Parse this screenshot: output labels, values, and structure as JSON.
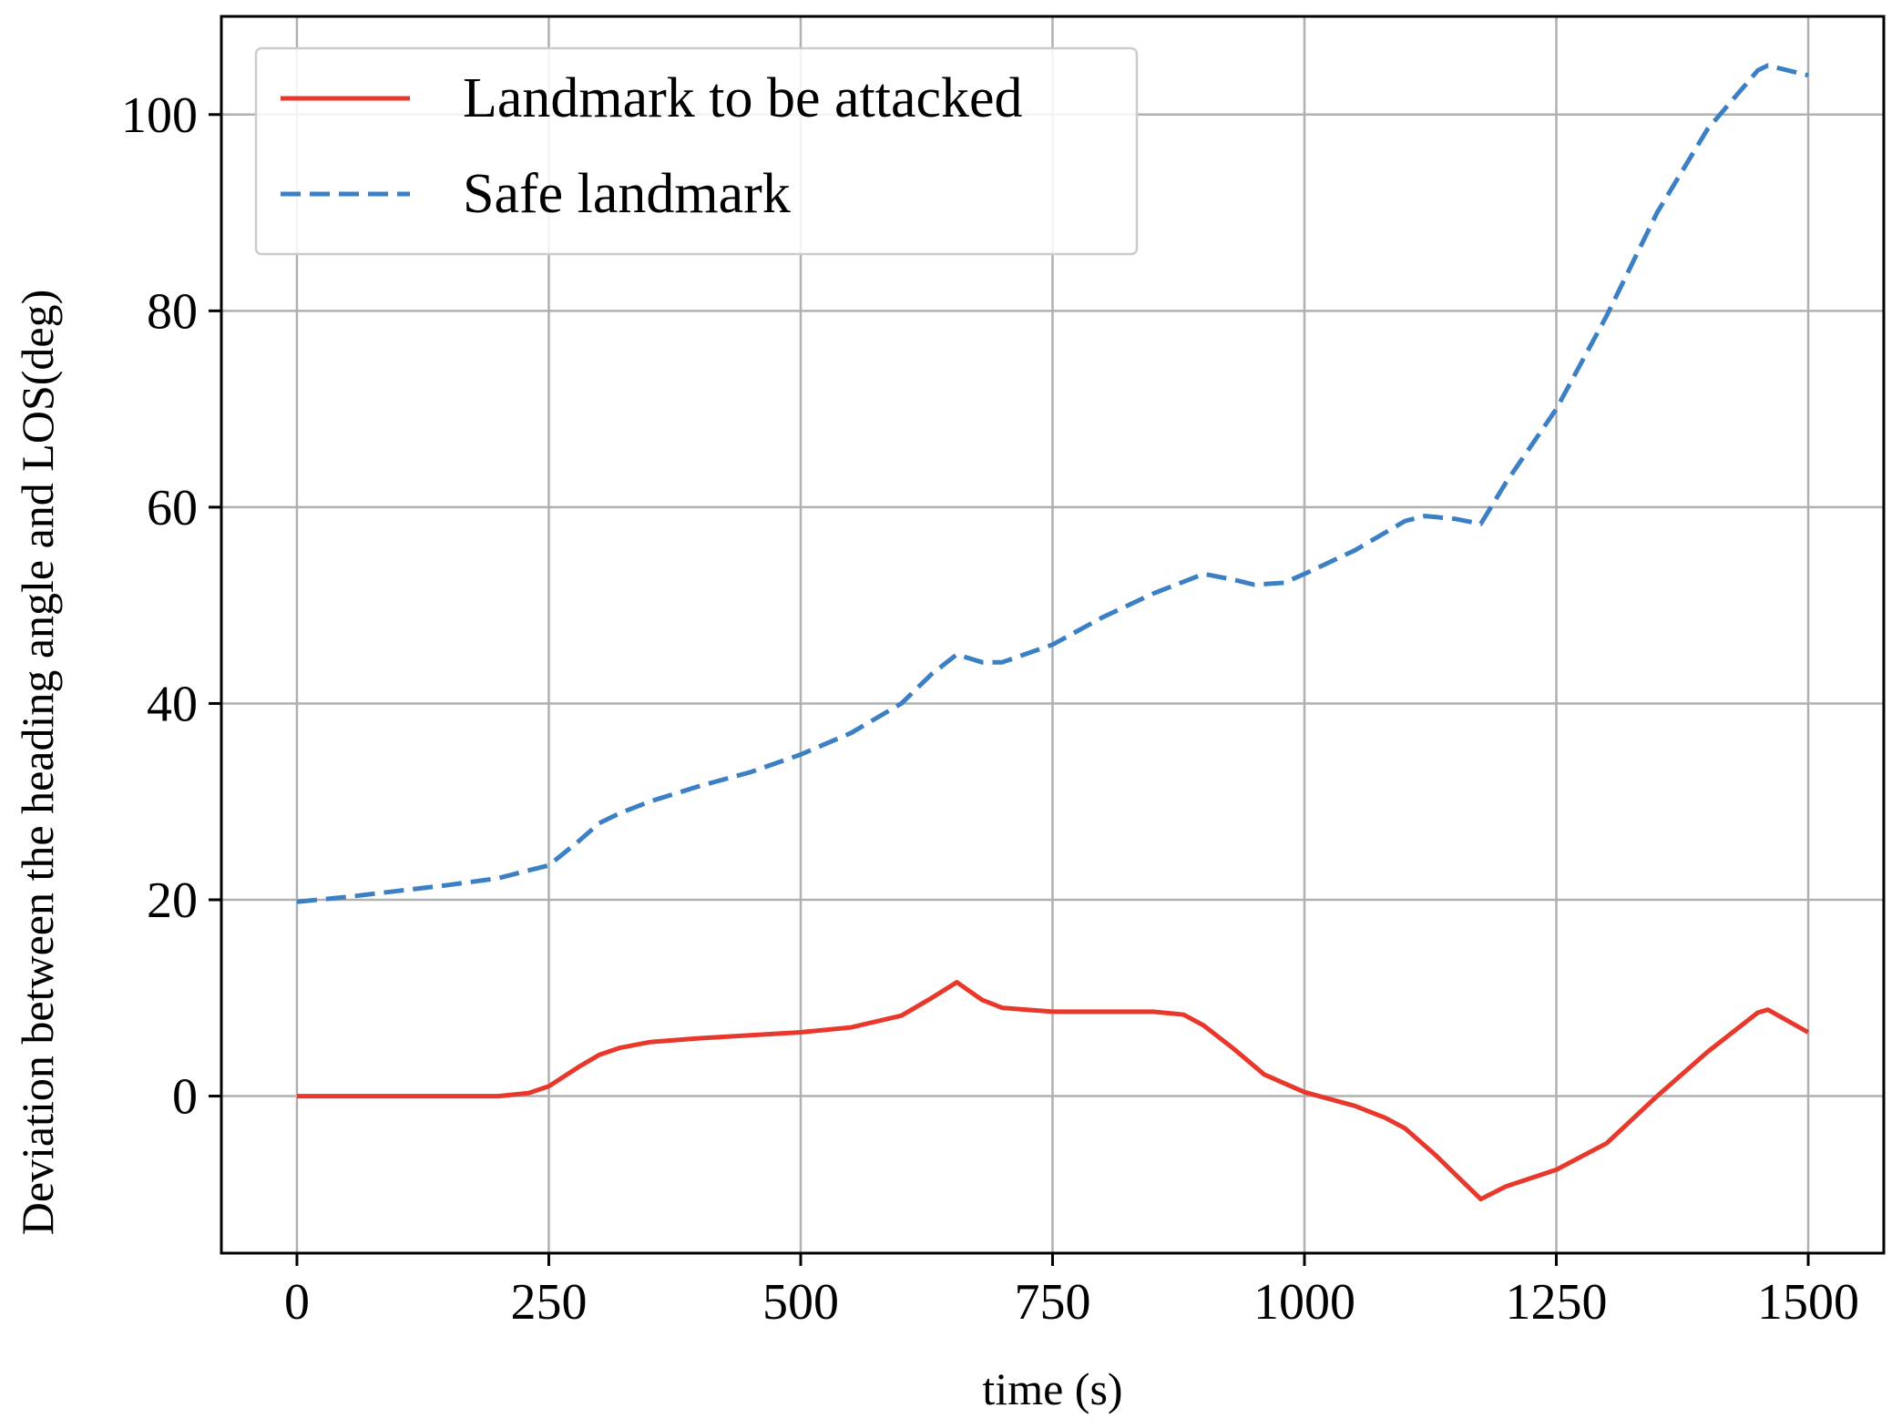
{
  "chart_data": {
    "type": "line",
    "title": "",
    "xlabel": "time (s)",
    "ylabel": "Deviation between the heading angle and LOS(deg)",
    "xlim": [
      -75,
      1575
    ],
    "ylim": [
      -16,
      110
    ],
    "xticks": [
      0,
      250,
      500,
      750,
      1000,
      1250,
      1500
    ],
    "yticks": [
      0,
      20,
      40,
      60,
      80,
      100
    ],
    "xtick_labels": [
      "0",
      "250",
      "500",
      "750",
      "1000",
      "1250",
      "1500"
    ],
    "ytick_labels": [
      "0",
      "20",
      "40",
      "60",
      "80",
      "100"
    ],
    "grid": true,
    "legend_position": "upper-left",
    "series": [
      {
        "name": "Landmark to be attacked",
        "color": "#e8382b",
        "style": "solid",
        "x": [
          0,
          50,
          100,
          150,
          200,
          230,
          250,
          280,
          300,
          320,
          350,
          400,
          450,
          500,
          550,
          600,
          630,
          655,
          680,
          700,
          750,
          800,
          850,
          880,
          900,
          930,
          960,
          1000,
          1050,
          1080,
          1100,
          1130,
          1150,
          1175,
          1200,
          1250,
          1300,
          1350,
          1400,
          1450,
          1460,
          1500
        ],
        "y": [
          0,
          0,
          0,
          0,
          0,
          0.3,
          1,
          3,
          4.2,
          4.9,
          5.5,
          5.9,
          6.2,
          6.5,
          7,
          8.2,
          10,
          11.6,
          9.8,
          9,
          8.6,
          8.6,
          8.6,
          8.3,
          7.2,
          4.8,
          2.2,
          0.4,
          -1,
          -2.2,
          -3.3,
          -6,
          -8,
          -10.5,
          -9.2,
          -7.5,
          -4.8,
          0,
          4.5,
          8.5,
          8.8,
          6.5
        ]
      },
      {
        "name": "Safe landmark",
        "color": "#3b7fc4",
        "style": "dashed",
        "x": [
          0,
          50,
          100,
          150,
          200,
          230,
          250,
          280,
          300,
          320,
          350,
          400,
          450,
          500,
          550,
          600,
          630,
          655,
          680,
          700,
          750,
          800,
          850,
          900,
          930,
          950,
          980,
          1000,
          1050,
          1100,
          1120,
          1150,
          1175,
          1200,
          1250,
          1300,
          1350,
          1400,
          1450,
          1460,
          1500
        ],
        "y": [
          19.8,
          20.3,
          20.9,
          21.5,
          22.2,
          23,
          23.5,
          26,
          27.8,
          28.8,
          30,
          31.6,
          33,
          34.8,
          37,
          40,
          43,
          45,
          44.2,
          44.2,
          46,
          48.8,
          51.2,
          53.2,
          52.6,
          52.1,
          52.3,
          53.2,
          55.6,
          58.6,
          59.1,
          58.8,
          58.3,
          62.5,
          70,
          79.5,
          90,
          98.5,
          104.5,
          105,
          104
        ]
      }
    ]
  }
}
